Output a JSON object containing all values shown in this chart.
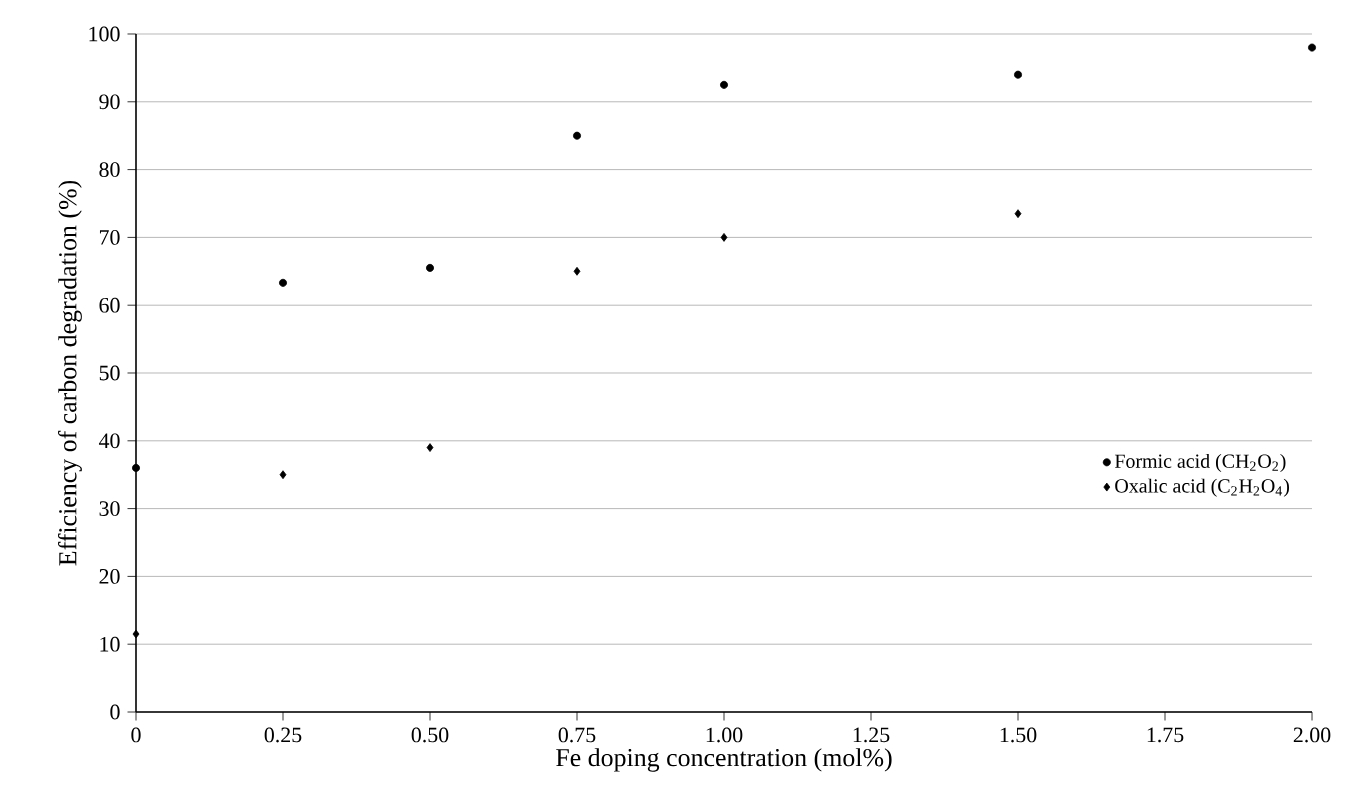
{
  "chart_data": {
    "type": "scatter",
    "xlabel": "Fe doping concentration (mol%)",
    "ylabel": "Efficiency of carbon degradation (%)",
    "xlim": [
      0,
      2
    ],
    "xticks": [
      0,
      {
        "value": 0.25,
        "label": "0.25"
      },
      {
        "value": 0.5,
        "label": "0.50"
      },
      {
        "value": 0.75,
        "label": "0.75"
      },
      {
        "value": 1,
        "label": "1.00"
      },
      {
        "value": 1.25,
        "label": "1.25"
      },
      {
        "value": 1.5,
        "label": "1.50"
      },
      {
        "value": 1.75,
        "label": "1.75"
      },
      {
        "value": 2,
        "label": "2.00"
      }
    ],
    "ylim": [
      0,
      100
    ],
    "yticks": [
      0,
      10,
      20,
      30,
      40,
      50,
      60,
      70,
      80,
      90,
      100
    ],
    "grid": "y",
    "legend": "right",
    "series": [
      {
        "name": "Formic acid (CH$_{2}$O$_{2}$)",
        "color": "#000000",
        "marker": "circle",
        "x": [
          0,
          0.25,
          0.5,
          0.75,
          1,
          1.5,
          2
        ],
        "values": [
          36,
          63.3,
          65.5,
          85,
          92.5,
          94,
          98
        ]
      },
      {
        "name": "Oxalic acid (C$_{2}$H$_{2}$O$_{4}$)",
        "color": "#000000",
        "marker": "diamond",
        "x": [
          0,
          0.25,
          0.5,
          0.75,
          1,
          1.5
        ],
        "values": [
          11.5,
          35,
          39,
          65,
          70,
          73.5
        ]
      }
    ]
  }
}
